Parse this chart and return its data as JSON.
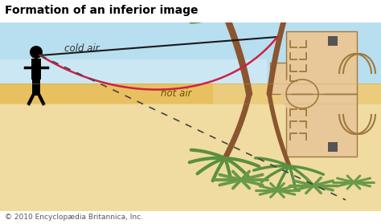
{
  "title": "Formation of an inferior image",
  "copyright": "© 2010 Encyclopædia Britannica, Inc.",
  "sky_color": "#b8dff0",
  "sky_color_bottom": "#d8eef8",
  "hot_band_color": "#e8c060",
  "sand_color": "#f0dca0",
  "label_cold_air": "cold air",
  "label_hot_air": "hot air",
  "straight_line_color": "#1a1a1a",
  "curved_line_color": "#cc2244",
  "dashed_line_color": "#444444",
  "building_color": "#e8c898",
  "building_outline": "#a07840",
  "building_dark": "#c8a870",
  "palm_trunk_color": "#8b5530",
  "palm_leaf_color": "#5a9040",
  "agave_color": "#6a9a48",
  "title_fontsize": 10,
  "label_fontsize": 8.5,
  "copyright_fontsize": 6.5
}
